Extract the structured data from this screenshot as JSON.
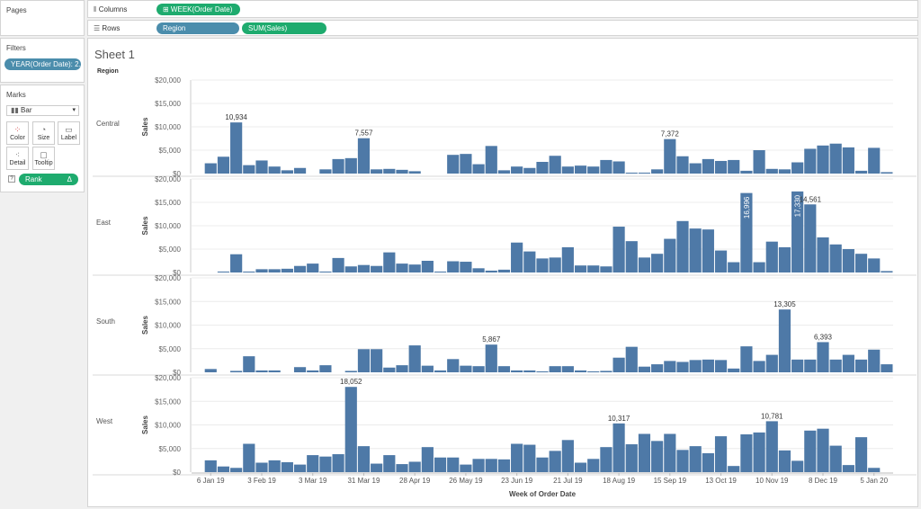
{
  "pages_panel": {
    "title": "Pages"
  },
  "filters_panel": {
    "title": "Filters",
    "filter_pill": "YEAR(Order Date): 2.."
  },
  "marks_panel": {
    "title": "Marks",
    "mark_type": "Bar",
    "buttons": {
      "color": "Color",
      "size": "Size",
      "label": "Label",
      "detail": "Detail",
      "tooltip": "Tooltip"
    },
    "rank_pill": "Rank",
    "rank_delta": "Δ"
  },
  "columns_shelf": {
    "label": "Columns",
    "pill": "⊞ WEEK(Order Date)"
  },
  "rows_shelf": {
    "label": "Rows",
    "pills": [
      "Region",
      "SUM(Sales)"
    ]
  },
  "sheet": {
    "title": "Sheet 1",
    "region_header": "Region"
  },
  "colors": {
    "bar": "#4e79a7",
    "pill_green": "#1eab6e",
    "pill_blue": "#4b8dac"
  },
  "chart_data": {
    "type": "bar",
    "xlabel": "Week of Order Date",
    "ylabel": "Sales",
    "ylim": [
      0,
      20000
    ],
    "y_ticks": [
      "$0",
      "$5,000",
      "$10,000",
      "$15,000",
      "$20,000"
    ],
    "y_tick_values": [
      0,
      5000,
      10000,
      15000,
      20000
    ],
    "x_ticks": [
      "6 Jan 19",
      "3 Feb 19",
      "3 Mar 19",
      "31 Mar 19",
      "28 Apr 19",
      "26 May 19",
      "23 Jun 19",
      "21 Jul 19",
      "18 Aug 19",
      "15 Sep 19",
      "13 Oct 19",
      "10 Nov 19",
      "8 Dec 19",
      "5 Jan 20"
    ],
    "x_tick_weeks": [
      2,
      6,
      10,
      14,
      18,
      22,
      26,
      30,
      34,
      38,
      42,
      46,
      50,
      54
    ],
    "weeks": 54,
    "series": [
      {
        "name": "Central",
        "values": [
          0,
          2200,
          3600,
          10934,
          1800,
          2800,
          1500,
          700,
          1200,
          0,
          900,
          3100,
          3300,
          7557,
          900,
          1000,
          800,
          500,
          0,
          0,
          4000,
          4200,
          2000,
          5900,
          700,
          1500,
          1200,
          2500,
          3800,
          1500,
          1700,
          1500,
          2900,
          2600,
          200,
          200,
          900,
          7372,
          3700,
          2200,
          3100,
          2700,
          2900,
          600,
          5000,
          1000,
          900,
          2400,
          5300,
          6000,
          6400,
          5600,
          600,
          5500,
          300
        ],
        "labels": {
          "3": "10,934",
          "13": "7,557",
          "37": "7,372"
        }
      },
      {
        "name": "East",
        "values": [
          0,
          0,
          200,
          3900,
          200,
          700,
          700,
          800,
          1400,
          1900,
          200,
          3100,
          1300,
          1600,
          1400,
          4300,
          1900,
          1700,
          2500,
          200,
          2400,
          2300,
          900,
          400,
          600,
          6400,
          4500,
          3000,
          3200,
          5400,
          1500,
          1500,
          1300,
          9800,
          6700,
          3200,
          4000,
          7200,
          11000,
          9400,
          9200,
          4700,
          2200,
          16996,
          2200,
          6600,
          5400,
          17330,
          14561,
          7500,
          6000,
          5000,
          4000,
          3000,
          300
        ],
        "labels": {
          "43": "16,996",
          "47": "17,330",
          "48": "14,561"
        },
        "rotated_labels": [
          "43",
          "47"
        ]
      },
      {
        "name": "South",
        "values": [
          0,
          700,
          0,
          300,
          3400,
          400,
          400,
          0,
          1100,
          400,
          1500,
          0,
          300,
          4900,
          4900,
          1000,
          1500,
          5700,
          1400,
          400,
          2800,
          1400,
          1300,
          5867,
          1300,
          400,
          400,
          200,
          1300,
          1300,
          400,
          200,
          300,
          3100,
          5400,
          1200,
          1700,
          2400,
          2200,
          2600,
          2700,
          2600,
          800,
          5500,
          2400,
          3700,
          13305,
          2700,
          2700,
          6393,
          2700,
          3700,
          2700,
          4800,
          1700
        ],
        "labels": {
          "46": "13,305",
          "49": "6,393",
          "23": "5,867"
        }
      },
      {
        "name": "West",
        "values": [
          0,
          2500,
          1200,
          900,
          6000,
          2000,
          2500,
          2100,
          1600,
          3600,
          3300,
          3800,
          18052,
          5500,
          1800,
          3600,
          1700,
          2200,
          5300,
          3100,
          3100,
          1600,
          2800,
          2800,
          2700,
          6000,
          5800,
          3100,
          4500,
          6800,
          2000,
          2800,
          5300,
          10317,
          5900,
          8100,
          6600,
          8100,
          4700,
          5500,
          4000,
          7600,
          1300,
          8000,
          8400,
          10781,
          4600,
          2400,
          8800,
          9200,
          5600,
          1500,
          7400,
          900,
          0
        ],
        "labels": {
          "12": "18,052",
          "33": "10,317",
          "45": "10,781"
        }
      }
    ]
  }
}
